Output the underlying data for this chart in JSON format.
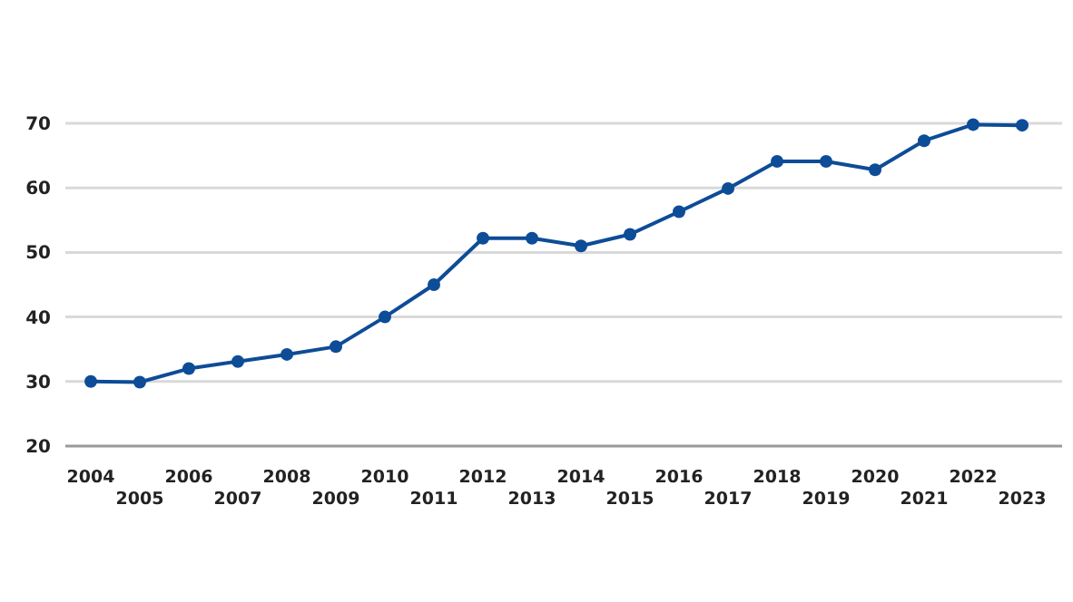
{
  "chart_data": {
    "type": "line",
    "categories": [
      "2004",
      "2005",
      "2006",
      "2007",
      "2008",
      "2009",
      "2010",
      "2011",
      "2012",
      "2013",
      "2014",
      "2015",
      "2016",
      "2017",
      "2018",
      "2019",
      "2020",
      "2021",
      "2022",
      "2023"
    ],
    "series": [
      {
        "color": "#0d4c97",
        "values": [
          30,
          29.9,
          32,
          33.1,
          34.2,
          35.4,
          40,
          45,
          52.2,
          52.2,
          51,
          52.8,
          56.3,
          59.9,
          64.1,
          64.1,
          62.8,
          67.3,
          69.8,
          69.7
        ]
      }
    ],
    "ylim": [
      20,
      70
    ],
    "yticks": [
      20,
      30,
      40,
      50,
      60,
      70
    ],
    "grid": "y",
    "marker": "circle",
    "line_style": "solid"
  }
}
